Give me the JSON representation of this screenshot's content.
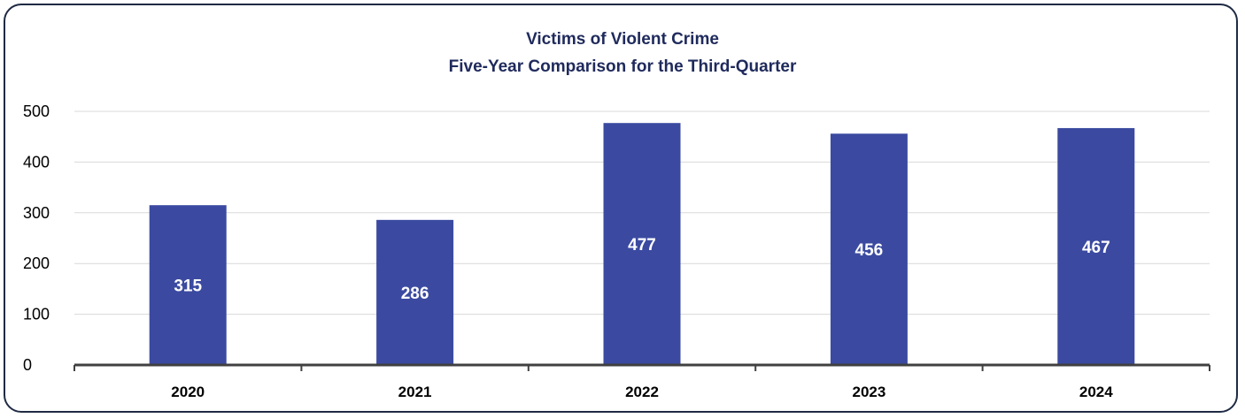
{
  "chart_data": {
    "type": "bar",
    "title": "Victims of Violent Crime",
    "subtitle": "Five-Year Comparison for the Third-Quarter",
    "categories": [
      "2020",
      "2021",
      "2022",
      "2023",
      "2024"
    ],
    "values": [
      315,
      286,
      477,
      456,
      467
    ],
    "data_labels": [
      "315",
      "286",
      "477",
      "456",
      "467"
    ],
    "y_ticks": [
      0,
      100,
      200,
      300,
      400,
      500
    ],
    "ylim": [
      0,
      500
    ],
    "xlabel": "",
    "ylabel": "",
    "grid": true,
    "legend": "none",
    "colors": {
      "bar": "#3b4aa0",
      "grid": "#d9d9d9",
      "axis": "#404040",
      "title": "#1f2a5c",
      "frame": "#1f2a44"
    }
  }
}
